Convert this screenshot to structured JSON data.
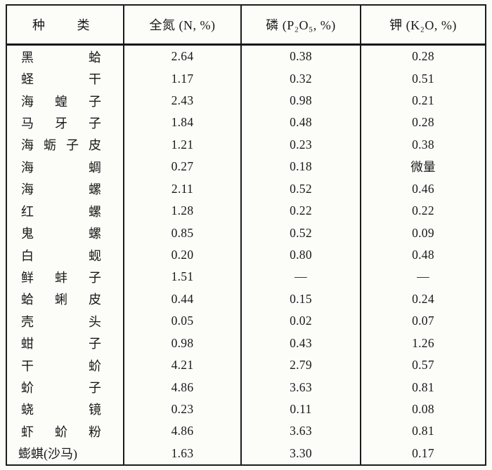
{
  "colors": {
    "paper": "#fbfbf7",
    "ink": "#181818",
    "border": "#1c1c1c"
  },
  "table": {
    "header": {
      "species_segments": [
        "种",
        "类"
      ],
      "nitrogen": "全氮 (N, %)",
      "phosphorus": "磷 (P₂O₅, %)",
      "potassium": "钾 (K₂O, %)"
    },
    "rows": [
      {
        "name_segments": [
          "黑",
          "蛤"
        ],
        "n": "2.64",
        "p": "0.38",
        "k": "0.28"
      },
      {
        "name_segments": [
          "蛏",
          "干"
        ],
        "n": "1.17",
        "p": "0.32",
        "k": "0.51"
      },
      {
        "name_segments": [
          "海",
          "蝗",
          "子"
        ],
        "n": "2.43",
        "p": "0.98",
        "k": "0.21"
      },
      {
        "name_segments": [
          "马",
          "牙",
          "子"
        ],
        "n": "1.84",
        "p": "0.48",
        "k": "0.28"
      },
      {
        "name_segments": [
          "海",
          "蛎",
          "子",
          "皮"
        ],
        "n": "1.21",
        "p": "0.23",
        "k": "0.38"
      },
      {
        "name_segments": [
          "海",
          "蜩"
        ],
        "n": "0.27",
        "p": "0.18",
        "k": "微量"
      },
      {
        "name_segments": [
          "海",
          "螺"
        ],
        "n": "2.11",
        "p": "0.52",
        "k": "0.46"
      },
      {
        "name_segments": [
          "红",
          "螺"
        ],
        "n": "1.28",
        "p": "0.22",
        "k": "0.22"
      },
      {
        "name_segments": [
          "鬼",
          "螺"
        ],
        "n": "0.85",
        "p": "0.52",
        "k": "0.09"
      },
      {
        "name_segments": [
          "白",
          "蚬"
        ],
        "n": "0.20",
        "p": "0.80",
        "k": "0.48"
      },
      {
        "name_segments": [
          "鲜",
          "蚌",
          "子"
        ],
        "n": "1.51",
        "p": "—",
        "k": "—"
      },
      {
        "name_segments": [
          "蛤",
          "蜊",
          "皮"
        ],
        "n": "0.44",
        "p": "0.15",
        "k": "0.24"
      },
      {
        "name_segments": [
          "壳",
          "头"
        ],
        "n": "0.05",
        "p": "0.02",
        "k": "0.07"
      },
      {
        "name_segments": [
          "蚶",
          "子"
        ],
        "n": "0.98",
        "p": "0.43",
        "k": "1.26"
      },
      {
        "name_segments": [
          "干",
          "蚧"
        ],
        "n": "4.21",
        "p": "2.79",
        "k": "0.57"
      },
      {
        "name_segments": [
          "蚧",
          "子"
        ],
        "n": "4.86",
        "p": "3.63",
        "k": "0.81"
      },
      {
        "name_segments": [
          "蛲",
          "镜"
        ],
        "n": "0.23",
        "p": "0.11",
        "k": "0.08"
      },
      {
        "name_segments": [
          "虾",
          "蚧",
          "粉"
        ],
        "n": "4.86",
        "p": "3.63",
        "k": "0.81"
      },
      {
        "name_segments": [
          "蟛蜞(沙马)"
        ],
        "n": "1.63",
        "p": "3.30",
        "k": "0.17"
      }
    ]
  }
}
